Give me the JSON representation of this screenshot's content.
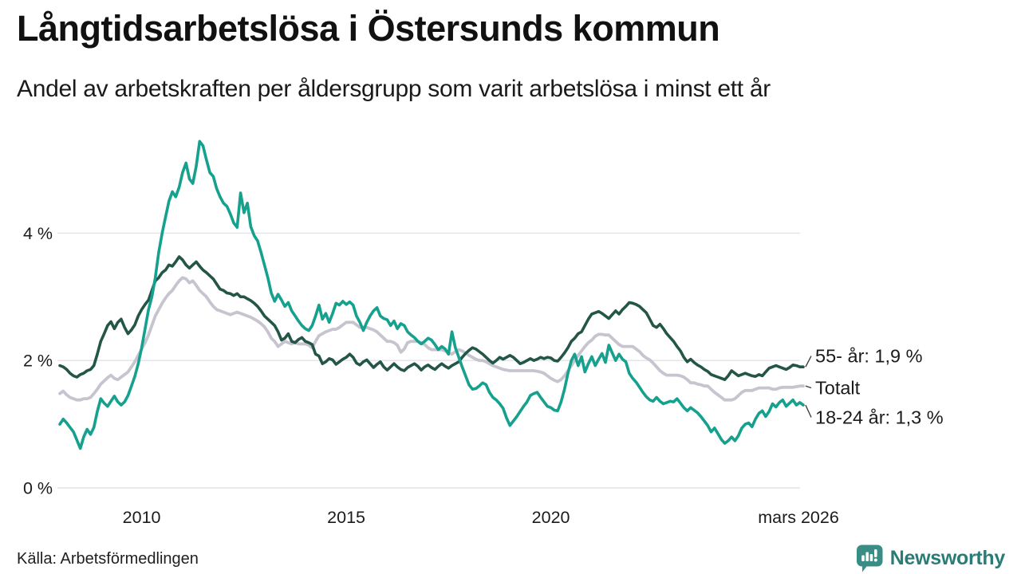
{
  "header": {
    "title": "Långtidsarbetslösa i Östersunds kommun",
    "subtitle": "Andel av arbetskraften per åldersgrupp som varit arbetslösa i minst ett år"
  },
  "footer": {
    "source": "Källa: Arbetsförmedlingen",
    "brand": "Newsworthy"
  },
  "colors": {
    "grid": "#e3e2e7",
    "tick_text": "#1b1b1b",
    "connector": "#333333",
    "brand_teal": "#3a8d84",
    "brand_text": "#2b7c76"
  },
  "chart_data": {
    "type": "line",
    "unit": "%",
    "grid": true,
    "legend_position": "end-labels-right",
    "x_axis": {
      "start_year": 2008.0,
      "points_per_year": 12,
      "end": "mars 2026",
      "ticks": [
        {
          "label": "2010",
          "year": 2010.0
        },
        {
          "label": "2015",
          "year": 2015.0
        },
        {
          "label": "2020",
          "year": 2020.0
        },
        {
          "label": "mars 2026",
          "year": 2026.17
        }
      ]
    },
    "y_axis": {
      "ylim": [
        0,
        5.6
      ],
      "ticks": [
        {
          "label": "0 %",
          "value": 0
        },
        {
          "label": "2 %",
          "value": 2
        },
        {
          "label": "4 %",
          "value": 4
        }
      ]
    },
    "series": [
      {
        "name": "55- år",
        "end_label": "55- år: 1,9 %",
        "color": "#245648",
        "z": 1,
        "values": [
          1.92,
          1.9,
          1.86,
          1.8,
          1.76,
          1.74,
          1.78,
          1.8,
          1.84,
          1.86,
          1.92,
          2.1,
          2.3,
          2.42,
          2.55,
          2.61,
          2.5,
          2.6,
          2.65,
          2.52,
          2.42,
          2.48,
          2.56,
          2.7,
          2.8,
          2.88,
          2.95,
          3.1,
          3.25,
          3.3,
          3.38,
          3.42,
          3.5,
          3.48,
          3.55,
          3.63,
          3.58,
          3.5,
          3.45,
          3.5,
          3.55,
          3.48,
          3.42,
          3.38,
          3.33,
          3.28,
          3.2,
          3.12,
          3.1,
          3.06,
          3.05,
          3.02,
          3.05,
          3.0,
          3.0,
          2.97,
          2.94,
          2.9,
          2.85,
          2.78,
          2.7,
          2.65,
          2.6,
          2.55,
          2.45,
          2.32,
          2.35,
          2.42,
          2.3,
          2.28,
          2.33,
          2.36,
          2.3,
          2.28,
          2.25,
          2.1,
          2.07,
          1.95,
          1.98,
          2.03,
          2.01,
          1.94,
          1.98,
          2.02,
          2.05,
          2.1,
          2.05,
          1.96,
          1.93,
          1.98,
          2.01,
          1.95,
          1.89,
          1.94,
          1.98,
          1.9,
          1.85,
          1.9,
          1.95,
          1.9,
          1.86,
          1.84,
          1.89,
          1.92,
          1.95,
          1.91,
          1.85,
          1.9,
          1.93,
          1.89,
          1.86,
          1.91,
          1.95,
          1.91,
          1.88,
          1.92,
          1.95,
          1.98,
          2.05,
          2.11,
          2.16,
          2.2,
          2.18,
          2.14,
          2.1,
          2.05,
          2.0,
          1.96,
          2.0,
          2.05,
          2.02,
          2.05,
          2.08,
          2.05,
          2.0,
          1.95,
          1.97,
          2.0,
          2.03,
          2.0,
          2.02,
          2.05,
          2.03,
          2.05,
          2.04,
          2.0,
          1.99,
          2.05,
          2.12,
          2.2,
          2.3,
          2.35,
          2.42,
          2.45,
          2.55,
          2.65,
          2.73,
          2.75,
          2.77,
          2.74,
          2.7,
          2.66,
          2.72,
          2.78,
          2.73,
          2.8,
          2.85,
          2.91,
          2.9,
          2.88,
          2.85,
          2.8,
          2.75,
          2.65,
          2.55,
          2.52,
          2.57,
          2.5,
          2.42,
          2.36,
          2.3,
          2.22,
          2.15,
          2.05,
          1.98,
          2.02,
          1.97,
          1.93,
          1.9,
          1.86,
          1.83,
          1.78,
          1.76,
          1.74,
          1.72,
          1.7,
          1.76,
          1.84,
          1.8,
          1.76,
          1.78,
          1.8,
          1.78,
          1.76,
          1.75,
          1.78,
          1.76,
          1.82,
          1.88,
          1.9,
          1.92,
          1.9,
          1.88,
          1.86,
          1.89,
          1.93,
          1.92,
          1.9,
          1.9
        ]
      },
      {
        "name": "Totalt",
        "end_label": "Totalt",
        "color": "#c6c5cf",
        "z": 0,
        "values": [
          1.48,
          1.52,
          1.46,
          1.42,
          1.4,
          1.38,
          1.38,
          1.4,
          1.4,
          1.42,
          1.48,
          1.55,
          1.63,
          1.68,
          1.73,
          1.77,
          1.72,
          1.7,
          1.74,
          1.78,
          1.82,
          1.9,
          1.98,
          2.08,
          2.18,
          2.28,
          2.4,
          2.55,
          2.7,
          2.8,
          2.9,
          2.98,
          3.05,
          3.1,
          3.18,
          3.25,
          3.3,
          3.28,
          3.22,
          3.25,
          3.18,
          3.1,
          3.05,
          3.0,
          2.92,
          2.85,
          2.8,
          2.78,
          2.76,
          2.74,
          2.72,
          2.74,
          2.76,
          2.74,
          2.72,
          2.7,
          2.68,
          2.65,
          2.62,
          2.58,
          2.53,
          2.45,
          2.35,
          2.3,
          2.22,
          2.26,
          2.3,
          2.28,
          2.26,
          2.28,
          2.26,
          2.26,
          2.26,
          2.24,
          2.2,
          2.3,
          2.39,
          2.42,
          2.45,
          2.47,
          2.49,
          2.49,
          2.52,
          2.56,
          2.6,
          2.6,
          2.6,
          2.56,
          2.52,
          2.52,
          2.52,
          2.5,
          2.48,
          2.45,
          2.4,
          2.35,
          2.3,
          2.3,
          2.28,
          2.24,
          2.13,
          2.18,
          2.28,
          2.3,
          2.3,
          2.3,
          2.28,
          2.25,
          2.2,
          2.17,
          2.17,
          2.17,
          2.17,
          2.15,
          2.12,
          2.1,
          2.14,
          2.17,
          2.15,
          2.12,
          2.08,
          2.05,
          2.02,
          2.0,
          2.0,
          1.98,
          1.95,
          1.92,
          1.9,
          1.88,
          1.86,
          1.85,
          1.84,
          1.84,
          1.84,
          1.84,
          1.84,
          1.84,
          1.84,
          1.84,
          1.83,
          1.82,
          1.8,
          1.76,
          1.72,
          1.69,
          1.67,
          1.7,
          1.76,
          1.84,
          1.92,
          2.0,
          2.08,
          2.15,
          2.22,
          2.28,
          2.32,
          2.38,
          2.41,
          2.41,
          2.4,
          2.4,
          2.35,
          2.3,
          2.25,
          2.22,
          2.22,
          2.22,
          2.22,
          2.18,
          2.14,
          2.08,
          2.04,
          2.01,
          1.96,
          1.9,
          1.84,
          1.8,
          1.77,
          1.77,
          1.77,
          1.77,
          1.76,
          1.74,
          1.7,
          1.65,
          1.65,
          1.63,
          1.62,
          1.6,
          1.6,
          1.55,
          1.5,
          1.46,
          1.42,
          1.38,
          1.38,
          1.38,
          1.4,
          1.45,
          1.5,
          1.53,
          1.53,
          1.53,
          1.55,
          1.57,
          1.57,
          1.57,
          1.57,
          1.55,
          1.55,
          1.57,
          1.58,
          1.58,
          1.58,
          1.58,
          1.59,
          1.6,
          1.6
        ]
      },
      {
        "name": "18-24 år",
        "end_label": "18-24 år: 1,3 %",
        "color": "#16a08e",
        "z": 2,
        "values": [
          1.0,
          1.08,
          1.02,
          0.95,
          0.88,
          0.75,
          0.62,
          0.8,
          0.92,
          0.84,
          0.95,
          1.2,
          1.4,
          1.33,
          1.28,
          1.36,
          1.44,
          1.35,
          1.3,
          1.35,
          1.45,
          1.6,
          1.75,
          1.95,
          2.2,
          2.5,
          2.8,
          3.0,
          3.3,
          3.7,
          4.0,
          4.25,
          4.5,
          4.65,
          4.57,
          4.72,
          4.95,
          5.1,
          4.85,
          4.78,
          5.05,
          5.44,
          5.37,
          5.15,
          4.95,
          4.89,
          4.7,
          4.57,
          4.47,
          4.42,
          4.3,
          4.16,
          4.09,
          4.63,
          4.32,
          4.47,
          4.1,
          3.96,
          3.88,
          3.7,
          3.5,
          3.3,
          3.06,
          2.93,
          3.04,
          2.95,
          2.85,
          2.91,
          2.78,
          2.7,
          2.62,
          2.55,
          2.5,
          2.47,
          2.55,
          2.7,
          2.87,
          2.65,
          2.74,
          2.6,
          2.74,
          2.9,
          2.87,
          2.93,
          2.88,
          2.92,
          2.87,
          2.7,
          2.6,
          2.47,
          2.6,
          2.7,
          2.78,
          2.83,
          2.7,
          2.66,
          2.64,
          2.55,
          2.62,
          2.5,
          2.58,
          2.55,
          2.45,
          2.4,
          2.36,
          2.3,
          2.26,
          2.3,
          2.35,
          2.32,
          2.25,
          2.17,
          2.22,
          2.18,
          2.1,
          2.45,
          2.2,
          2.05,
          1.9,
          1.76,
          1.62,
          1.55,
          1.56,
          1.6,
          1.65,
          1.62,
          1.5,
          1.42,
          1.38,
          1.32,
          1.25,
          1.1,
          0.98,
          1.05,
          1.12,
          1.2,
          1.28,
          1.35,
          1.45,
          1.48,
          1.5,
          1.42,
          1.35,
          1.28,
          1.26,
          1.22,
          1.21,
          1.35,
          1.55,
          1.8,
          2.0,
          2.1,
          1.92,
          2.06,
          1.82,
          1.95,
          2.06,
          1.92,
          2.02,
          2.11,
          1.97,
          2.24,
          2.12,
          2.0,
          2.1,
          2.02,
          1.98,
          1.8,
          1.72,
          1.66,
          1.58,
          1.5,
          1.43,
          1.38,
          1.36,
          1.42,
          1.36,
          1.32,
          1.34,
          1.36,
          1.35,
          1.4,
          1.33,
          1.26,
          1.21,
          1.26,
          1.22,
          1.18,
          1.12,
          1.05,
          0.98,
          0.88,
          0.94,
          0.85,
          0.76,
          0.7,
          0.74,
          0.8,
          0.74,
          0.82,
          0.94,
          1.0,
          1.02,
          0.96,
          1.08,
          1.17,
          1.21,
          1.12,
          1.2,
          1.32,
          1.27,
          1.34,
          1.38,
          1.28,
          1.33,
          1.38,
          1.3,
          1.34,
          1.3
        ]
      }
    ]
  }
}
